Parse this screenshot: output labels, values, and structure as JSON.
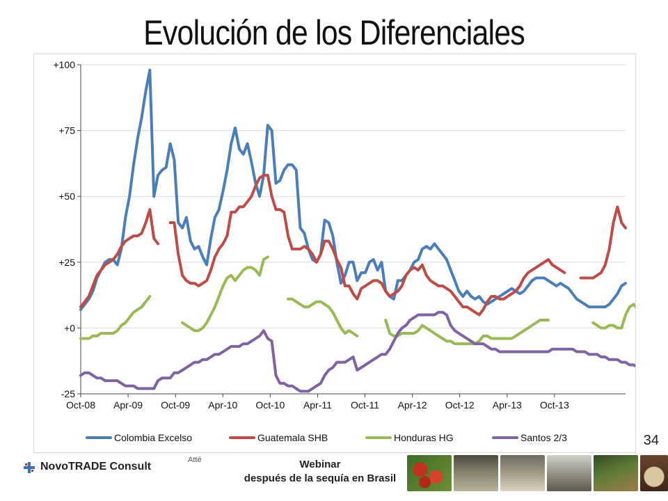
{
  "title": "Evolución de los Diferenciales",
  "page_number": "34",
  "footer": {
    "brand": "NovoTRADE Consult",
    "atte": "Atté",
    "webinar_line1": "Webinar",
    "webinar_line2": "después de la sequía en Brasil"
  },
  "chart_data": {
    "type": "line",
    "title": "Evolución de los Diferenciales",
    "x_start": "Oct-08",
    "x_tick_labels": [
      "Oct-08",
      "Apr-09",
      "Oct-09",
      "Apr-10",
      "Oct-10",
      "Apr-11",
      "Oct-11",
      "Apr-12",
      "Oct-12",
      "Apr-13",
      "Oct-13"
    ],
    "y_tick_labels": [
      "+100",
      "+75",
      "+50",
      "+25",
      "+0",
      "-25"
    ],
    "ylim": [
      -25,
      100
    ],
    "legend_position": "bottom",
    "series": [
      {
        "name": "Colombia Excelso",
        "color": "#4a7ebb",
        "values": [
          7,
          9,
          11,
          14,
          19,
          22,
          25,
          26,
          26,
          24,
          30,
          42,
          50,
          62,
          72,
          80,
          90,
          98,
          50,
          58,
          60,
          61,
          70,
          64,
          40,
          38,
          42,
          33,
          30,
          31,
          27,
          24,
          34,
          42,
          45,
          52,
          60,
          70,
          76,
          68,
          66,
          70,
          63,
          55,
          50,
          58,
          77,
          75,
          55,
          56,
          60,
          62,
          62,
          60,
          38,
          36,
          30,
          26,
          25,
          28,
          41,
          40,
          35,
          25,
          17,
          20,
          25,
          25,
          18,
          21,
          21,
          25,
          26,
          22,
          25,
          14,
          12,
          11,
          18,
          18,
          20,
          22,
          25,
          26,
          30,
          31,
          30,
          32,
          30,
          28,
          26,
          22,
          18,
          14,
          12,
          14,
          12,
          11,
          12,
          10,
          9,
          10,
          11,
          12,
          13,
          14,
          15,
          14,
          13,
          14,
          16,
          18,
          19,
          19,
          19,
          18,
          17,
          16,
          17,
          16,
          15,
          13,
          11,
          10,
          9,
          8,
          8,
          8,
          8,
          8,
          9,
          11,
          13,
          16,
          17
        ]
      },
      {
        "name": "Guatemala SHB",
        "color": "#be4b48",
        "values": [
          8,
          10,
          12,
          16,
          20,
          22,
          24,
          25,
          26,
          28,
          31,
          33,
          34,
          35,
          35,
          36,
          40,
          45,
          34,
          32,
          null,
          null,
          40,
          40,
          28,
          20,
          18,
          17,
          17,
          16,
          17,
          18,
          22,
          27,
          30,
          32,
          35,
          44,
          44,
          46,
          46,
          48,
          50,
          54,
          57,
          58,
          58,
          50,
          45,
          45,
          44,
          35,
          30,
          30,
          30,
          31,
          30,
          28,
          25,
          28,
          33,
          33,
          30,
          26,
          23,
          16,
          16,
          13,
          11,
          15,
          16,
          17,
          18,
          18,
          17,
          14,
          12,
          13,
          14,
          16,
          20,
          22,
          23,
          22,
          24,
          20,
          18,
          17,
          16,
          16,
          15,
          14,
          12,
          10,
          8,
          8,
          7,
          6,
          5,
          7,
          10,
          12,
          12,
          11,
          11,
          12,
          13,
          14,
          16,
          19,
          21,
          22,
          23,
          24,
          25,
          26,
          24,
          23,
          22,
          21,
          null,
          null,
          null,
          19,
          19,
          19,
          19,
          20,
          21,
          24,
          30,
          40,
          46,
          40,
          38
        ]
      },
      {
        "name": "Honduras HG",
        "color": "#98b954",
        "values": [
          -4,
          -4,
          -4,
          -3,
          -3,
          -2,
          -2,
          -2,
          -2,
          -1,
          1,
          2,
          4,
          6,
          7,
          8,
          10,
          12,
          null,
          null,
          null,
          null,
          null,
          null,
          null,
          2,
          1,
          0,
          -1,
          -1,
          0,
          2,
          5,
          8,
          12,
          16,
          19,
          20,
          18,
          20,
          22,
          23,
          23,
          22,
          20,
          26,
          27,
          null,
          null,
          null,
          null,
          11,
          11,
          10,
          9,
          8,
          8,
          9,
          10,
          10,
          9,
          8,
          6,
          3,
          0,
          -2,
          -1,
          -2,
          -3,
          null,
          null,
          null,
          null,
          null,
          null,
          3,
          -2,
          -3,
          -3,
          -2,
          -2,
          -2,
          -2,
          -1,
          1,
          0,
          -1,
          -2,
          -3,
          -4,
          -5,
          -5,
          -6,
          -6,
          -6,
          -6,
          -6,
          -6,
          -5,
          -3,
          -3,
          -4,
          -4,
          -4,
          -4,
          -4,
          -4,
          -3,
          -2,
          -1,
          0,
          1,
          2,
          3,
          3,
          3,
          null,
          null,
          null,
          null,
          null,
          null,
          null,
          null,
          null,
          null,
          2,
          1,
          0,
          0,
          1,
          1,
          0,
          0,
          5,
          8,
          9,
          7,
          6
        ]
      },
      {
        "name": "Santos 2/3",
        "color": "#7e62a1",
        "values": [
          -18,
          -17,
          -17,
          -18,
          -19,
          -19,
          -20,
          -20,
          -20,
          -20,
          -21,
          -22,
          -22,
          -22,
          -23,
          -23,
          -23,
          -23,
          -23,
          -20,
          -19,
          -19,
          -19,
          -17,
          -17,
          -16,
          -15,
          -14,
          -13,
          -13,
          -12,
          -12,
          -11,
          -10,
          -10,
          -9,
          -8,
          -7,
          -7,
          -7,
          -6,
          -6,
          -5,
          -4,
          -3,
          -1,
          -4,
          -5,
          -18,
          -21,
          -21,
          -22,
          -22,
          -23,
          -24,
          -24,
          -24,
          -23,
          -22,
          -21,
          -18,
          -16,
          -15,
          -13,
          -13,
          -13,
          -12,
          -11,
          -16,
          -15,
          -14,
          -13,
          -12,
          -11,
          -10,
          -10,
          -8,
          -5,
          -2,
          0,
          1,
          3,
          4,
          5,
          5,
          5,
          5,
          5,
          6,
          6,
          5,
          1,
          -1,
          -2,
          -3,
          -4,
          -5,
          -6,
          -6,
          -6,
          -7,
          -8,
          -8,
          -9,
          -9,
          -9,
          -9,
          -9,
          -9,
          -9,
          -9,
          -9,
          -9,
          -9,
          -9,
          -9,
          -8,
          -8,
          -8,
          -8,
          -8,
          -8,
          -9,
          -9,
          -9,
          -10,
          -10,
          -10,
          -11,
          -11,
          -12,
          -12,
          -12,
          -13,
          -13,
          -14,
          -14,
          -15,
          -16
        ]
      }
    ]
  }
}
